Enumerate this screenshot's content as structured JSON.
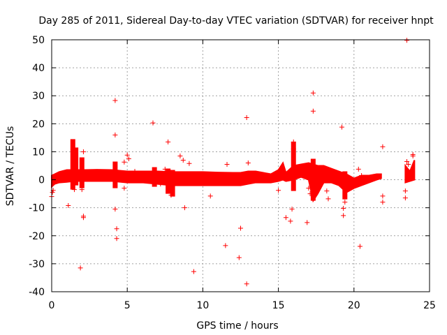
{
  "chart_data": {
    "type": "scatter",
    "title": "Day 285 of 2011, Sidereal Day-to-day VTEC variation (SDTVAR) for receiver hnpt",
    "xlabel": "GPS time / hours",
    "ylabel": "SDTVAR / TECUs",
    "xlim": [
      0,
      25
    ],
    "ylim": [
      -40,
      50
    ],
    "xticks": [
      0,
      5,
      10,
      15,
      20,
      25
    ],
    "yticks": [
      -40,
      -30,
      -20,
      -10,
      0,
      10,
      20,
      30,
      40,
      50
    ],
    "xtick_labels": [
      "0",
      "5",
      "10",
      "15",
      "20",
      "25"
    ],
    "ytick_labels": [
      "-40",
      "-30",
      "-20",
      "-10",
      "0",
      "10",
      "20",
      "30",
      "40",
      "50"
    ],
    "grid": true,
    "marker": "+",
    "series_color": "#ff0000",
    "band": [
      [
        0.0,
        -2.5,
        1.5
      ],
      [
        0.2,
        -1.5,
        2.0
      ],
      [
        0.5,
        -1.0,
        2.8
      ],
      [
        1.0,
        -0.8,
        3.5
      ],
      [
        1.5,
        -0.5,
        3.5
      ],
      [
        2.0,
        -0.5,
        3.5
      ],
      [
        3.0,
        -0.5,
        3.6
      ],
      [
        4.0,
        -0.5,
        3.5
      ],
      [
        5.0,
        -1.0,
        3.0
      ],
      [
        6.0,
        -1.0,
        3.0
      ],
      [
        7.0,
        -1.5,
        3.0
      ],
      [
        8.0,
        -2.0,
        2.8
      ],
      [
        9.0,
        -2.0,
        2.8
      ],
      [
        10.0,
        -2.0,
        2.8
      ],
      [
        11.0,
        -2.0,
        2.6
      ],
      [
        12.0,
        -2.0,
        2.5
      ],
      [
        12.5,
        -2.0,
        2.5
      ],
      [
        13.0,
        -1.5,
        3.0
      ],
      [
        13.5,
        -1.0,
        3.0
      ],
      [
        14.0,
        -1.0,
        2.5
      ],
      [
        14.5,
        -1.0,
        2.0
      ],
      [
        15.0,
        -0.5,
        3.5
      ],
      [
        15.3,
        0.0,
        6.0
      ],
      [
        15.5,
        -0.5,
        2.5
      ],
      [
        16.0,
        0.0,
        5.0
      ],
      [
        16.5,
        1.0,
        5.5
      ],
      [
        17.0,
        0.0,
        6.0
      ],
      [
        17.3,
        -7.5,
        5.5
      ],
      [
        17.6,
        -5.0,
        5.0
      ],
      [
        18.0,
        -1.0,
        5.0
      ],
      [
        18.5,
        -1.0,
        4.0
      ],
      [
        19.0,
        -2.0,
        3.0
      ],
      [
        19.5,
        -4.5,
        2.0
      ],
      [
        20.0,
        -3.0,
        0.5
      ],
      [
        20.5,
        -2.0,
        1.5
      ],
      [
        21.0,
        -1.0,
        1.5
      ],
      [
        21.5,
        0.0,
        2.0
      ],
      [
        21.8,
        0.5,
        2.0
      ]
    ],
    "band2": [
      [
        23.4,
        -1.0,
        5.0
      ],
      [
        23.7,
        -0.5,
        3.0
      ],
      [
        24.0,
        0.0,
        7.0
      ]
    ],
    "spikes": [
      [
        1.4,
        -3.5,
        14.5
      ],
      [
        1.6,
        -2.0,
        11.5
      ],
      [
        2.0,
        -3.0,
        8.0
      ],
      [
        4.2,
        -3.0,
        6.5
      ],
      [
        6.8,
        -2.5,
        4.5
      ],
      [
        7.7,
        -5.0,
        4.0
      ],
      [
        8.0,
        -6.0,
        3.5
      ],
      [
        16.0,
        -4.0,
        13.5
      ],
      [
        17.3,
        -7.5,
        7.5
      ],
      [
        19.4,
        -7.0,
        3.0
      ]
    ],
    "points": [
      [
        0.0,
        -6.0
      ],
      [
        0.05,
        -4.5
      ],
      [
        0.1,
        -3.8
      ],
      [
        1.1,
        -9.2
      ],
      [
        1.5,
        -3.5
      ],
      [
        1.9,
        -31.5
      ],
      [
        2.0,
        -3.5
      ],
      [
        2.1,
        -13.0
      ],
      [
        2.1,
        -13.5
      ],
      [
        2.1,
        10.0
      ],
      [
        4.2,
        28.3
      ],
      [
        4.2,
        16.0
      ],
      [
        4.2,
        -10.5
      ],
      [
        4.3,
        -17.5
      ],
      [
        4.3,
        -21.0
      ],
      [
        4.8,
        -3.0
      ],
      [
        4.8,
        6.3
      ],
      [
        5.0,
        8.8
      ],
      [
        5.1,
        7.5
      ],
      [
        5.5,
        3.0
      ],
      [
        6.7,
        20.3
      ],
      [
        7.2,
        -1.5
      ],
      [
        7.5,
        3.8
      ],
      [
        7.7,
        13.5
      ],
      [
        7.9,
        -5.5
      ],
      [
        8.5,
        8.5
      ],
      [
        8.7,
        7.0
      ],
      [
        8.8,
        -10.0
      ],
      [
        9.1,
        5.8
      ],
      [
        9.4,
        -32.8
      ],
      [
        10.5,
        -5.8
      ],
      [
        11.5,
        -23.5
      ],
      [
        11.6,
        5.5
      ],
      [
        12.4,
        -27.8
      ],
      [
        12.5,
        -17.3
      ],
      [
        12.9,
        22.2
      ],
      [
        12.9,
        -37.2
      ],
      [
        13.0,
        6.0
      ],
      [
        15.0,
        -3.8
      ],
      [
        15.5,
        -13.5
      ],
      [
        15.8,
        -14.8
      ],
      [
        15.9,
        -10.5
      ],
      [
        16.0,
        13.5
      ],
      [
        16.0,
        11.0
      ],
      [
        16.9,
        -15.3
      ],
      [
        17.0,
        -3.0
      ],
      [
        17.1,
        -5.0
      ],
      [
        17.3,
        31.0
      ],
      [
        17.3,
        24.5
      ],
      [
        17.5,
        -4.0
      ],
      [
        18.2,
        -4.0
      ],
      [
        18.3,
        -6.8
      ],
      [
        19.0,
        1.0
      ],
      [
        19.2,
        18.8
      ],
      [
        19.3,
        -10.2
      ],
      [
        19.3,
        -12.8
      ],
      [
        19.4,
        -8.0
      ],
      [
        20.3,
        3.8
      ],
      [
        20.4,
        -23.8
      ],
      [
        20.5,
        1.5
      ],
      [
        21.9,
        11.8
      ],
      [
        21.9,
        -5.8
      ],
      [
        21.9,
        -8.0
      ],
      [
        23.4,
        -4.0
      ],
      [
        23.4,
        -6.5
      ],
      [
        23.5,
        49.8
      ],
      [
        23.5,
        6.5
      ],
      [
        23.6,
        5.5
      ],
      [
        23.9,
        8.5
      ],
      [
        23.9,
        9.0
      ]
    ]
  }
}
